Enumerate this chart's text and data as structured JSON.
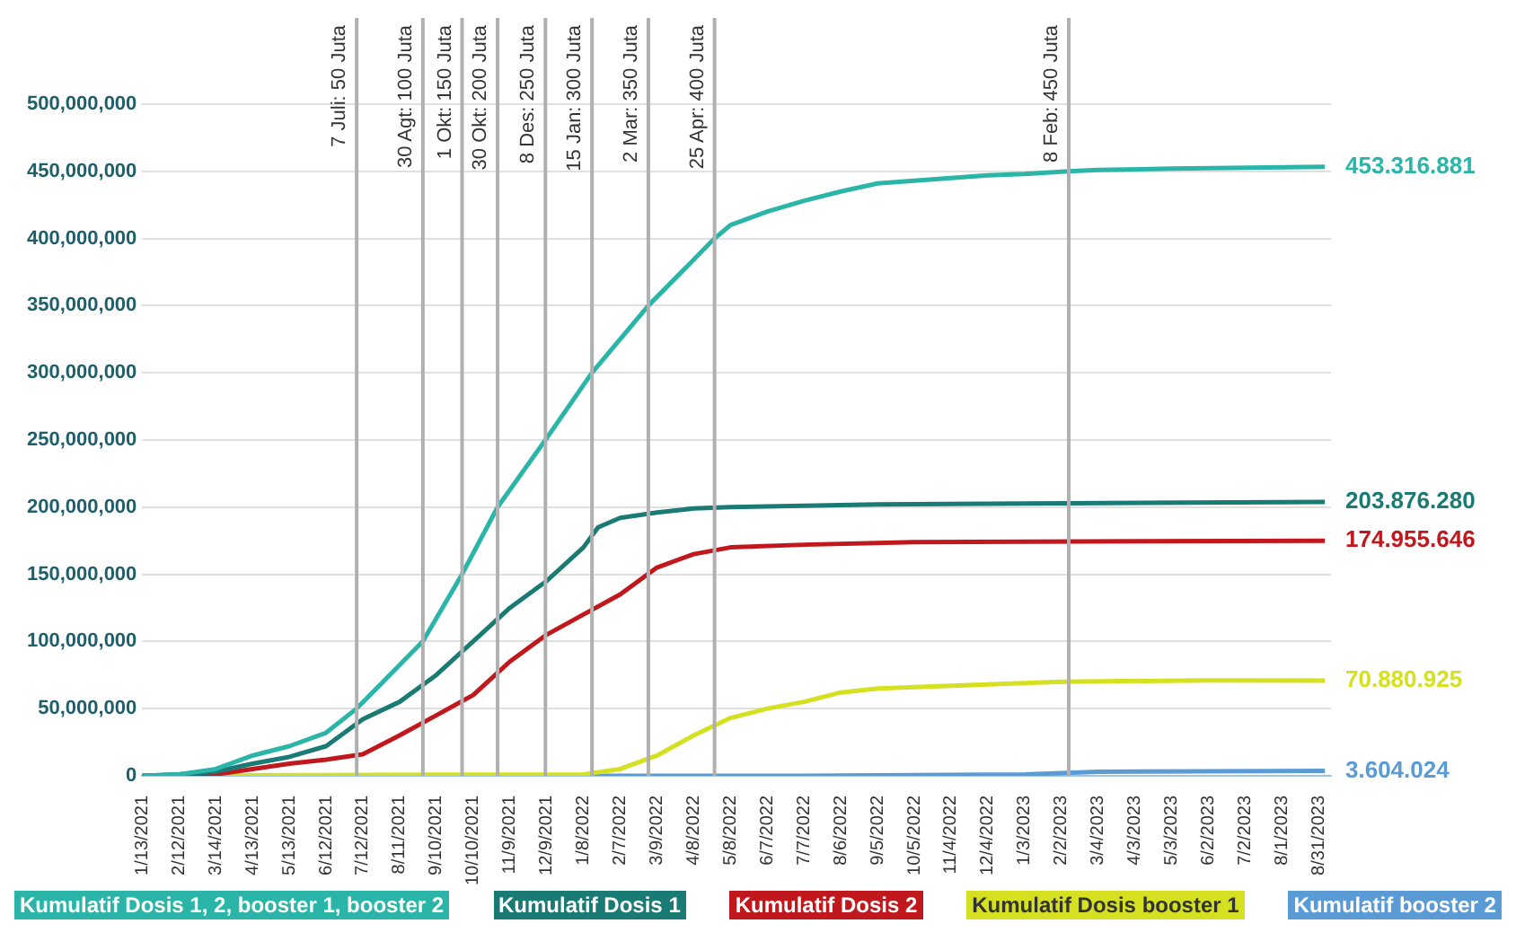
{
  "chart_data": {
    "type": "line",
    "x": [
      "2021-01-13",
      "2021-02-12",
      "2021-03-14",
      "2021-04-13",
      "2021-05-13",
      "2021-06-12",
      "2021-07-07",
      "2021-08-30",
      "2021-10-01",
      "2021-10-30",
      "2021-12-08",
      "2022-01-15",
      "2022-03-02",
      "2022-04-25",
      "2022-05-08",
      "2022-06-07",
      "2022-07-07",
      "2022-08-06",
      "2022-09-05",
      "2022-10-05",
      "2022-11-04",
      "2022-12-04",
      "2023-01-03",
      "2023-02-08",
      "2023-03-04",
      "2023-05-03",
      "2023-09-05"
    ],
    "series": [
      {
        "name": "Kumulatif Dosis 1, 2, booster 1, booster 2",
        "color": "#2ab5a8",
        "values": [
          0,
          1000000,
          5000000,
          15000000,
          22000000,
          32000000,
          50000000,
          100000000,
          150000000,
          200000000,
          250000000,
          300000000,
          350000000,
          400000000,
          410000000,
          420000000,
          428000000,
          435000000,
          441000000,
          443000000,
          445000000,
          447000000,
          448000000,
          450000000,
          451000000,
          452000000,
          453316881
        ]
      },
      {
        "name": "Kumulatif Dosis 1",
        "color": "#1a7a74",
        "x": [
          "2021-01-13",
          "2021-02-12",
          "2021-03-14",
          "2021-04-13",
          "2021-05-13",
          "2021-06-12",
          "2021-07-12",
          "2021-08-11",
          "2021-09-10",
          "2021-10-10",
          "2021-11-09",
          "2021-12-09",
          "2022-01-08",
          "2022-01-20",
          "2022-02-07",
          "2022-03-09",
          "2022-04-08",
          "2022-05-08",
          "2022-09-05",
          "2023-09-05"
        ],
        "values": [
          0,
          1000000,
          3000000,
          9000000,
          14000000,
          22000000,
          42000000,
          55000000,
          75000000,
          100000000,
          125000000,
          145000000,
          170000000,
          185000000,
          192000000,
          196000000,
          199000000,
          200000000,
          202000000,
          203876280
        ]
      },
      {
        "name": "Kumulatif Dosis 2",
        "color": "#c0181c",
        "x": [
          "2021-01-13",
          "2021-03-14",
          "2021-04-13",
          "2021-05-13",
          "2021-06-12",
          "2021-07-12",
          "2021-08-11",
          "2021-09-10",
          "2021-10-10",
          "2021-11-09",
          "2021-12-09",
          "2022-01-08",
          "2022-02-07",
          "2022-03-09",
          "2022-04-08",
          "2022-05-08",
          "2022-07-07",
          "2022-10-05",
          "2023-09-05"
        ],
        "values": [
          0,
          1000000,
          5000000,
          9000000,
          12000000,
          16000000,
          30000000,
          45000000,
          60000000,
          85000000,
          105000000,
          120000000,
          135000000,
          155000000,
          165000000,
          170000000,
          172000000,
          174000000,
          174955646
        ]
      },
      {
        "name": "Kumulatif Dosis booster 1",
        "color": "#d4e020",
        "x": [
          "2021-01-13",
          "2022-01-08",
          "2022-02-07",
          "2022-03-09",
          "2022-04-08",
          "2022-05-08",
          "2022-06-07",
          "2022-07-07",
          "2022-08-06",
          "2022-09-05",
          "2022-10-05",
          "2022-12-04",
          "2023-02-02",
          "2023-06-02",
          "2023-09-05"
        ],
        "values": [
          0,
          1000000,
          5000000,
          15000000,
          30000000,
          43000000,
          50000000,
          55000000,
          62000000,
          65000000,
          66000000,
          68000000,
          70000000,
          71000000,
          70880925
        ]
      },
      {
        "name": "Kumulatif booster 2",
        "color": "#5b9bd5",
        "x": [
          "2021-01-13",
          "2022-07-07",
          "2023-01-03",
          "2023-03-04",
          "2023-09-05"
        ],
        "values": [
          0,
          0,
          1000000,
          3000000,
          3604024
        ]
      }
    ],
    "xlim": [
      "2021-01-13",
      "2023-09-10"
    ],
    "xticks": [
      {
        "value": "2021-01-13",
        "label": "1/13/2021"
      },
      {
        "value": "2021-02-12",
        "label": "2/12/2021"
      },
      {
        "value": "2021-03-14",
        "label": "3/14/2021"
      },
      {
        "value": "2021-04-13",
        "label": "4/13/2021"
      },
      {
        "value": "2021-05-13",
        "label": "5/13/2021"
      },
      {
        "value": "2021-06-12",
        "label": "6/12/2021"
      },
      {
        "value": "2021-07-12",
        "label": "7/12/2021"
      },
      {
        "value": "2021-08-11",
        "label": "8/11/2021"
      },
      {
        "value": "2021-09-10",
        "label": "9/10/2021"
      },
      {
        "value": "2021-10-10",
        "label": "10/10/2021"
      },
      {
        "value": "2021-11-09",
        "label": "11/9/2021"
      },
      {
        "value": "2021-12-09",
        "label": "12/9/2021"
      },
      {
        "value": "2022-01-08",
        "label": "1/8/2022"
      },
      {
        "value": "2022-02-07",
        "label": "2/7/2022"
      },
      {
        "value": "2022-03-09",
        "label": "3/9/2022"
      },
      {
        "value": "2022-04-08",
        "label": "4/8/2022"
      },
      {
        "value": "2022-05-08",
        "label": "5/8/2022"
      },
      {
        "value": "2022-06-07",
        "label": "6/7/2022"
      },
      {
        "value": "2022-07-07",
        "label": "7/7/2022"
      },
      {
        "value": "2022-08-06",
        "label": "8/6/2022"
      },
      {
        "value": "2022-09-05",
        "label": "9/5/2022"
      },
      {
        "value": "2022-10-05",
        "label": "10/5/2022"
      },
      {
        "value": "2022-11-04",
        "label": "11/4/2022"
      },
      {
        "value": "2022-12-04",
        "label": "12/4/2022"
      },
      {
        "value": "2023-01-03",
        "label": "1/3/2023"
      },
      {
        "value": "2023-02-02",
        "label": "2/2/2023"
      },
      {
        "value": "2023-03-04",
        "label": "3/4/2023"
      },
      {
        "value": "2023-04-03",
        "label": "4/3/2023"
      },
      {
        "value": "2023-05-03",
        "label": "5/3/2023"
      },
      {
        "value": "2023-06-02",
        "label": "6/2/2023"
      },
      {
        "value": "2023-07-02",
        "label": "7/2/2023"
      },
      {
        "value": "2023-08-01",
        "label": "8/1/2023"
      },
      {
        "value": "2023-08-31",
        "label": "8/31/2023"
      }
    ],
    "ylim": [
      0,
      500000000
    ],
    "yticks": [
      {
        "value": 0,
        "label": "0"
      },
      {
        "value": 50000000,
        "label": "50,000,000"
      },
      {
        "value": 100000000,
        "label": "100,000,000"
      },
      {
        "value": 150000000,
        "label": "150,000,000"
      },
      {
        "value": 200000000,
        "label": "200,000,000"
      },
      {
        "value": 250000000,
        "label": "250,000,000"
      },
      {
        "value": 300000000,
        "label": "300,000,000"
      },
      {
        "value": 350000000,
        "label": "350,000,000"
      },
      {
        "value": 400000000,
        "label": "400,000,000"
      },
      {
        "value": 450000000,
        "label": "450,000,000"
      },
      {
        "value": 500000000,
        "label": "500,000,000"
      }
    ],
    "ref_lines": [
      {
        "axis": "x",
        "value": "2021-07-07",
        "label": "7 Juli: 50 Juta",
        "color": "#b0b0b0"
      },
      {
        "axis": "x",
        "value": "2021-08-30",
        "label": "30 Agt: 100 Juta",
        "color": "#b0b0b0"
      },
      {
        "axis": "x",
        "value": "2021-10-01",
        "label": "1 Okt: 150 Juta",
        "color": "#b0b0b0"
      },
      {
        "axis": "x",
        "value": "2021-10-30",
        "label": "30 Okt: 200 Juta",
        "color": "#b0b0b0"
      },
      {
        "axis": "x",
        "value": "2021-12-08",
        "label": "8 Des: 250 Juta",
        "color": "#b0b0b0"
      },
      {
        "axis": "x",
        "value": "2022-01-15",
        "label": "15 Jan: 300 Juta",
        "color": "#b0b0b0"
      },
      {
        "axis": "x",
        "value": "2022-03-02",
        "label": "2 Mar: 350 Juta",
        "color": "#b0b0b0"
      },
      {
        "axis": "x",
        "value": "2022-04-25",
        "label": "25 Apr: 400 Juta",
        "color": "#b0b0b0"
      },
      {
        "axis": "x",
        "value": "2023-02-08",
        "label": "8 Feb: 450 Juta",
        "color": "#b0b0b0"
      }
    ],
    "annotations": [
      {
        "text": "453.316.881",
        "x": "2023-09-05",
        "y": 453316881
      },
      {
        "text": "203.876.280",
        "x": "2023-09-05",
        "y": 203876280
      },
      {
        "text": "174.955.646",
        "x": "2023-09-05",
        "y": 174955646
      },
      {
        "text": "70.880.925",
        "x": "2023-09-05",
        "y": 70880925
      },
      {
        "text": "3.604.024",
        "x": "2023-09-05",
        "y": 3604024
      }
    ],
    "grid": "y",
    "legend": "bottom",
    "marker": "none",
    "line_style": "solid"
  }
}
